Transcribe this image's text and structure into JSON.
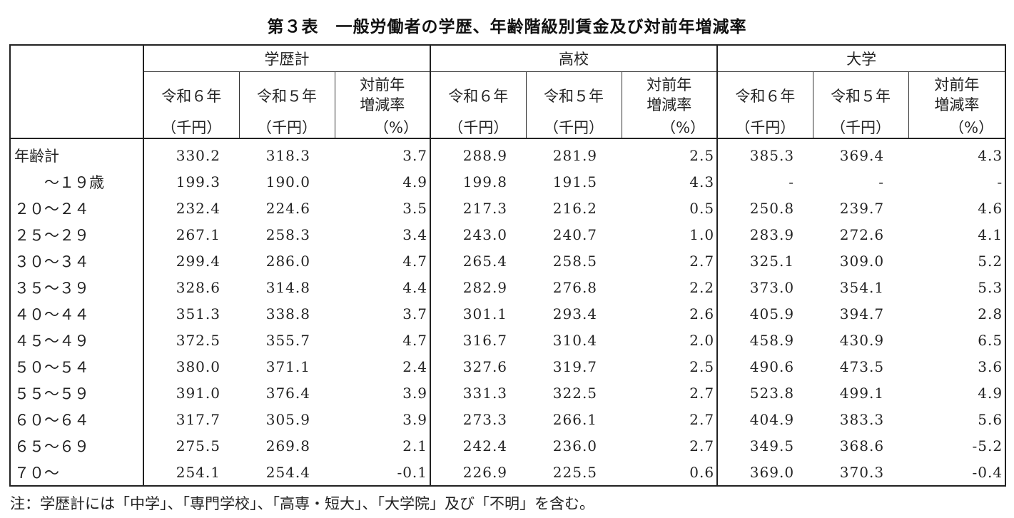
{
  "title": "第３表　一般労働者の学歴、年齢階級別賃金及び対前年増減率",
  "groups": [
    {
      "name": "学歴計"
    },
    {
      "name": "高校"
    },
    {
      "name": "大学"
    }
  ],
  "subheaders": {
    "current_year": "令和６年",
    "previous_year": "令和５年",
    "unit_thousand_yen": "（千円）",
    "rate_line1": "対前年",
    "rate_line2": "増減率",
    "rate_unit": "（%）"
  },
  "rows": [
    {
      "label": "年齢計",
      "values": [
        "330.2",
        "318.3",
        "3.7",
        "288.9",
        "281.9",
        "2.5",
        "385.3",
        "369.4",
        "4.3"
      ]
    },
    {
      "label": "　　～１９歳",
      "values": [
        "199.3",
        "190.0",
        "4.9",
        "199.8",
        "191.5",
        "4.3",
        "-",
        "-",
        "-"
      ]
    },
    {
      "label": "２０～２４",
      "values": [
        "232.4",
        "224.6",
        "3.5",
        "217.3",
        "216.2",
        "0.5",
        "250.8",
        "239.7",
        "4.6"
      ]
    },
    {
      "label": "２５～２９",
      "values": [
        "267.1",
        "258.3",
        "3.4",
        "243.0",
        "240.7",
        "1.0",
        "283.9",
        "272.6",
        "4.1"
      ]
    },
    {
      "label": "３０～３４",
      "values": [
        "299.4",
        "286.0",
        "4.7",
        "265.4",
        "258.5",
        "2.7",
        "325.1",
        "309.0",
        "5.2"
      ]
    },
    {
      "label": "３５～３９",
      "values": [
        "328.6",
        "314.8",
        "4.4",
        "282.9",
        "276.8",
        "2.2",
        "373.0",
        "354.1",
        "5.3"
      ]
    },
    {
      "label": "４０～４４",
      "values": [
        "351.3",
        "338.8",
        "3.7",
        "301.1",
        "293.4",
        "2.6",
        "405.9",
        "394.7",
        "2.8"
      ]
    },
    {
      "label": "４５～４９",
      "values": [
        "372.5",
        "355.7",
        "4.7",
        "316.7",
        "310.4",
        "2.0",
        "458.9",
        "430.9",
        "6.5"
      ]
    },
    {
      "label": "５０～５４",
      "values": [
        "380.0",
        "371.1",
        "2.4",
        "327.6",
        "319.7",
        "2.5",
        "490.6",
        "473.5",
        "3.6"
      ]
    },
    {
      "label": "５５～５９",
      "values": [
        "391.0",
        "376.4",
        "3.9",
        "331.3",
        "322.5",
        "2.7",
        "523.8",
        "499.1",
        "4.9"
      ]
    },
    {
      "label": "６０～６４",
      "values": [
        "317.7",
        "305.9",
        "3.9",
        "273.3",
        "266.1",
        "2.7",
        "404.9",
        "383.3",
        "5.6"
      ]
    },
    {
      "label": "６５～６９",
      "values": [
        "275.5",
        "269.8",
        "2.1",
        "242.4",
        "236.0",
        "2.7",
        "349.5",
        "368.6",
        "-5.2"
      ]
    },
    {
      "label": "７０～",
      "values": [
        "254.1",
        "254.4",
        "-0.1",
        "226.9",
        "225.5",
        "0.6",
        "369.0",
        "370.3",
        "-0.4"
      ]
    }
  ],
  "note": "注：学歴計には「中学」、「専門学校」、「高専・短大」、「大学院」及び「不明」を含む。"
}
